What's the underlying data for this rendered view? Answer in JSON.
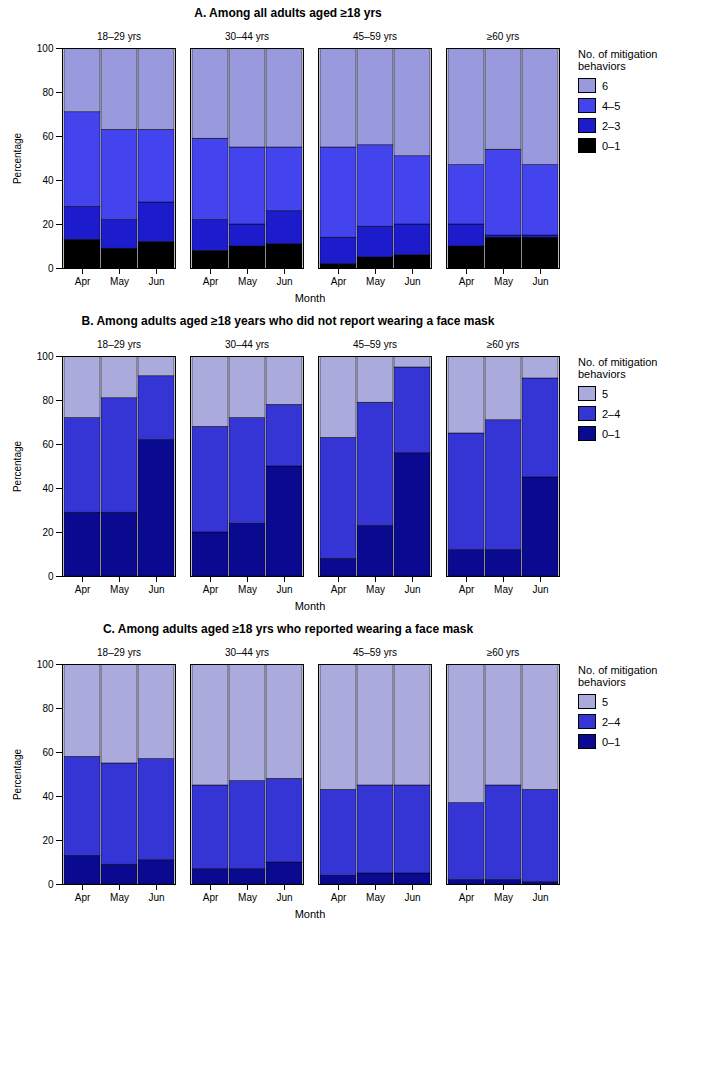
{
  "chart_data": [
    {
      "type": "bar",
      "stacked": true,
      "title": "A. Among all adults aged ≥18 yrs",
      "xlabel": "Month",
      "ylabel": "Percentage",
      "groups": [
        "18–29 yrs",
        "30–44 yrs",
        "45–59 yrs",
        "≥60 yrs"
      ],
      "categories": [
        "Apr",
        "May",
        "Jun",
        "Apr",
        "May",
        "Jun",
        "Apr",
        "May",
        "Jun",
        "Apr",
        "May",
        "Jun"
      ],
      "series": [
        {
          "name": "0–1",
          "color": "#000000",
          "values": [
            13,
            9,
            12,
            8,
            10,
            11,
            2,
            5,
            6,
            10,
            14,
            14
          ]
        },
        {
          "name": "2–3",
          "color": "#1c1ccc",
          "values": [
            15,
            13,
            18,
            14,
            10,
            15,
            12,
            14,
            14,
            10,
            1,
            1
          ]
        },
        {
          "name": "4–5",
          "color": "#4444ee",
          "values": [
            43,
            41,
            33,
            37,
            35,
            29,
            41,
            37,
            31,
            27,
            39,
            32
          ]
        },
        {
          "name": "6",
          "color": "#9999dd",
          "values": [
            29,
            37,
            37,
            41,
            45,
            45,
            45,
            44,
            49,
            53,
            46,
            53
          ]
        }
      ],
      "ylim": [
        0,
        100
      ],
      "yticks": [
        0,
        20,
        40,
        60,
        80,
        100
      ],
      "legend": "right",
      "legend_title": "No. of mitigation\nbehaviors"
    },
    {
      "type": "bar",
      "stacked": true,
      "title": "B. Among adults aged ≥18 years who did not report wearing a face mask",
      "xlabel": "Month",
      "ylabel": "Percentage",
      "groups": [
        "18–29 yrs",
        "30–44 yrs",
        "45–59 yrs",
        "≥60 yrs"
      ],
      "categories": [
        "Apr",
        "May",
        "Jun",
        "Apr",
        "May",
        "Jun",
        "Apr",
        "May",
        "Jun",
        "Apr",
        "May",
        "Jun"
      ],
      "series": [
        {
          "name": "0–1",
          "color": "#0a0a90",
          "values": [
            29,
            29,
            62,
            20,
            24,
            50,
            8,
            23,
            56,
            12,
            12,
            45
          ]
        },
        {
          "name": "2–4",
          "color": "#3535d5",
          "values": [
            43,
            52,
            29,
            48,
            48,
            28,
            55,
            56,
            39,
            53,
            59,
            45
          ]
        },
        {
          "name": "5",
          "color": "#aaaadd",
          "values": [
            28,
            19,
            9,
            32,
            28,
            22,
            37,
            21,
            5,
            35,
            29,
            10
          ]
        }
      ],
      "ylim": [
        0,
        100
      ],
      "yticks": [
        0,
        20,
        40,
        60,
        80,
        100
      ],
      "legend": "right",
      "legend_title": "No. of mitigation\nbehaviors"
    },
    {
      "type": "bar",
      "stacked": true,
      "title": "C. Among adults aged ≥18 yrs who reported wearing a face mask",
      "xlabel": "Month",
      "ylabel": "Percentage",
      "groups": [
        "18–29 yrs",
        "30–44 yrs",
        "45–59 yrs",
        "≥60 yrs"
      ],
      "categories": [
        "Apr",
        "May",
        "Jun",
        "Apr",
        "May",
        "Jun",
        "Apr",
        "May",
        "Jun",
        "Apr",
        "May",
        "Jun"
      ],
      "series": [
        {
          "name": "0–1",
          "color": "#0a0a90",
          "values": [
            13,
            9,
            11,
            7,
            7,
            10,
            4,
            5,
            5,
            2,
            2,
            1
          ]
        },
        {
          "name": "2–4",
          "color": "#3535d5",
          "values": [
            45,
            46,
            46,
            38,
            40,
            38,
            39,
            40,
            40,
            35,
            43,
            42
          ]
        },
        {
          "name": "5",
          "color": "#aaaadd",
          "values": [
            42,
            45,
            43,
            55,
            53,
            52,
            57,
            55,
            55,
            63,
            55,
            57
          ]
        }
      ],
      "ylim": [
        0,
        100
      ],
      "yticks": [
        0,
        20,
        40,
        60,
        80,
        100
      ],
      "legend": "right",
      "legend_title": "No. of mitigation\nbehaviors"
    }
  ]
}
